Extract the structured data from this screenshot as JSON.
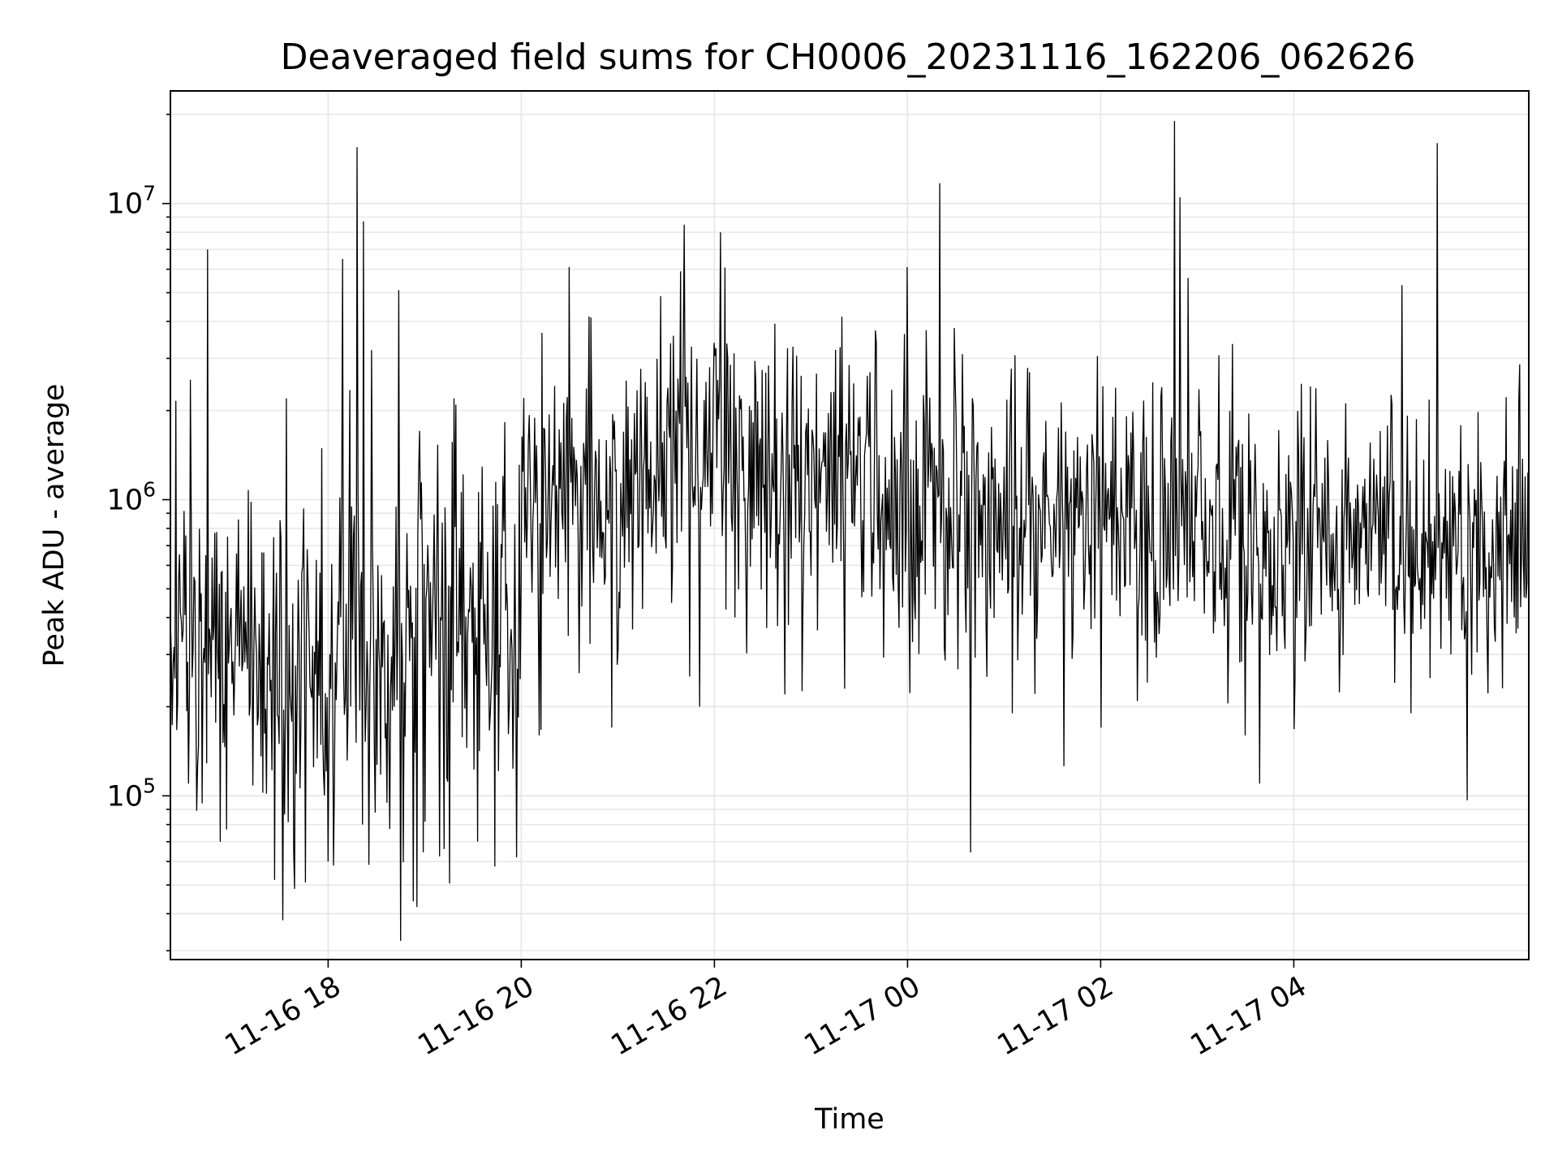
{
  "chart_data": {
    "type": "line",
    "title": "Deaveraged field sums for CH0006_20231116_162206_062626",
    "xlabel": "Time",
    "ylabel": "Peak ADU - average",
    "yscale": "log",
    "grid": true,
    "line_color": "#000000",
    "grid_color": "#e6e6e6",
    "xlim": [
      "2023-11-16 16:22",
      "2023-11-17 06:26"
    ],
    "ylim": [
      28000,
      24000000
    ],
    "x_ticks": [
      {
        "value": "2023-11-16 18:00",
        "label": "11-16 18"
      },
      {
        "value": "2023-11-16 20:00",
        "label": "11-16 20"
      },
      {
        "value": "2023-11-16 22:00",
        "label": "11-16 22"
      },
      {
        "value": "2023-11-17 00:00",
        "label": "11-17 00"
      },
      {
        "value": "2023-11-17 02:00",
        "label": "11-17 02"
      },
      {
        "value": "2023-11-17 04:00",
        "label": "11-17 04"
      }
    ],
    "y_ticks": [
      {
        "value": 100000,
        "base": "10",
        "exp": "5"
      },
      {
        "value": 1000000,
        "base": "10",
        "exp": "6"
      },
      {
        "value": 10000000,
        "base": "10",
        "exp": "7"
      }
    ],
    "series": [
      {
        "baseline": [
          [
            "2023-11-16 16:22",
            420000
          ],
          [
            "2023-11-16 17:00",
            330000
          ],
          [
            "2023-11-16 17:30",
            280000
          ],
          [
            "2023-11-16 18:00",
            300000
          ],
          [
            "2023-11-16 18:30",
            270000
          ],
          [
            "2023-11-16 19:00",
            300000
          ],
          [
            "2023-11-16 19:30",
            420000
          ],
          [
            "2023-11-16 19:59",
            450000
          ],
          [
            "2023-11-16 20:01",
            1100000
          ],
          [
            "2023-11-16 21:00",
            1050000
          ],
          [
            "2023-11-16 22:00",
            1400000
          ],
          [
            "2023-11-16 23:00",
            1200000
          ],
          [
            "2023-11-17 00:00",
            1000000
          ],
          [
            "2023-11-17 01:00",
            950000
          ],
          [
            "2023-11-17 02:00",
            850000
          ],
          [
            "2023-11-17 03:00",
            750000
          ],
          [
            "2023-11-17 04:00",
            750000
          ],
          [
            "2023-11-17 05:00",
            750000
          ],
          [
            "2023-11-17 06:26",
            700000
          ]
        ],
        "spikes": [
          [
            "2023-11-16 16:45",
            7000000
          ],
          [
            "2023-11-16 17:34",
            2200000
          ],
          [
            "2023-11-16 18:09",
            6500000
          ],
          [
            "2023-11-16 18:18",
            15500000
          ],
          [
            "2023-11-16 18:22",
            8700000
          ],
          [
            "2023-11-16 18:27",
            3200000
          ],
          [
            "2023-11-16 18:44",
            5100000
          ],
          [
            "2023-11-16 19:18",
            2200000
          ],
          [
            "2023-11-16 20:30",
            6100000
          ],
          [
            "2023-11-16 21:39",
            5900000
          ],
          [
            "2023-11-16 22:04",
            8000000
          ],
          [
            "2023-11-17 00:00",
            6100000
          ],
          [
            "2023-11-17 00:20",
            11700000
          ],
          [
            "2023-11-17 02:46",
            19000000
          ],
          [
            "2023-11-17 02:49",
            10500000
          ],
          [
            "2023-11-17 05:07",
            5300000
          ],
          [
            "2023-11-17 05:29",
            16000000
          ]
        ],
        "dips": [
          [
            "2023-11-16 16:33",
            110000
          ],
          [
            "2023-11-16 16:57",
            77000
          ],
          [
            "2023-11-16 17:27",
            52000
          ],
          [
            "2023-11-16 17:32",
            38000
          ],
          [
            "2023-11-16 17:46",
            51000
          ],
          [
            "2023-11-16 18:00",
            60000
          ],
          [
            "2023-11-16 18:53",
            44000
          ],
          [
            "2023-11-16 19:33",
            70000
          ],
          [
            "2023-11-16 19:57",
            62000
          ],
          [
            "2023-11-16 20:11",
            160000
          ],
          [
            "2023-11-16 20:56",
            170000
          ],
          [
            "2023-11-16 21:51",
            200000
          ],
          [
            "2023-11-16 22:44",
            220000
          ],
          [
            "2023-11-16 23:21",
            230000
          ],
          [
            "2023-11-17 01:05",
            190000
          ],
          [
            "2023-11-17 02:00",
            170000
          ],
          [
            "2023-11-17 03:30",
            160000
          ],
          [
            "2023-11-17 03:39",
            110000
          ],
          [
            "2023-11-17 05:13",
            190000
          ]
        ]
      }
    ]
  }
}
